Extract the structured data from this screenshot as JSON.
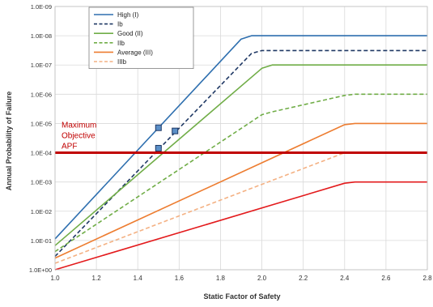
{
  "chart_data": {
    "type": "line",
    "title": "",
    "xlabel": "Static Factor of Safety",
    "ylabel": "Annual Probability of Failure",
    "xlim": [
      1.0,
      2.8
    ],
    "x_ticks": [
      "1.0",
      "1.2",
      "1.4",
      "1.6",
      "1.8",
      "2.0",
      "2.2",
      "2.4",
      "2.6",
      "2.8"
    ],
    "ylim_exponent": [
      0,
      -9
    ],
    "y_ticks": [
      "1.0E+00",
      "1.0E-01",
      "1.0E-02",
      "1.0E-03",
      "1.0E-04",
      "1.0E-05",
      "1.0E-06",
      "1.0E-07",
      "1.0E-08",
      "1.0E-09"
    ],
    "y_scale": "log, inverted (smaller probabilities toward top)",
    "grid": "horizontal and vertical",
    "legend_position": "top-left",
    "series": [
      {
        "name": "High (I)",
        "color": "#2e6faf",
        "dash": "solid",
        "x": [
          1.0,
          1.9,
          1.95,
          2.8
        ],
        "y": [
          0.088,
          1.3e-08,
          1e-08,
          1e-08
        ]
      },
      {
        "name": "Ib",
        "color": "#1f3864",
        "dash": "dashed",
        "x": [
          1.0,
          1.95,
          2.0,
          2.8
        ],
        "y": [
          0.35,
          4e-08,
          3.2e-08,
          3.2e-08
        ]
      },
      {
        "name": "Good (II)",
        "color": "#70ad47",
        "dash": "solid",
        "x": [
          1.0,
          2.0,
          2.05,
          2.8
        ],
        "y": [
          0.15,
          1.3e-07,
          1e-07,
          1e-07
        ]
      },
      {
        "name": "IIb",
        "color": "#70ad47",
        "dash": "dashed",
        "x": [
          1.0,
          2.0,
          2.05,
          2.4,
          2.45,
          2.8
        ],
        "y": [
          0.24,
          5e-06,
          4e-06,
          1.1e-06,
          1e-06,
          1e-06
        ]
      },
      {
        "name": "Average (III)",
        "color": "#ed7d31",
        "dash": "solid",
        "x": [
          1.0,
          2.4,
          2.45,
          2.8
        ],
        "y": [
          0.4,
          1.1e-05,
          1e-05,
          1e-05
        ]
      },
      {
        "name": "IIIb",
        "color": "#f4b183",
        "dash": "dashed",
        "x": [
          1.0,
          2.4,
          2.45,
          2.8
        ],
        "y": [
          0.6,
          0.0001,
          0.0001,
          0.0001
        ]
      },
      {
        "name": "",
        "color": "#e31a1c",
        "dash": "solid",
        "x": [
          1.0,
          2.4,
          2.45,
          2.8
        ],
        "y": [
          1.0,
          0.0011,
          0.001,
          0.001
        ]
      }
    ],
    "reference_line": {
      "y": 0.0001,
      "color": "#c00000",
      "label": [
        "Maximum",
        "Objective",
        "APF"
      ]
    },
    "points": [
      {
        "x": 1.5,
        "y": 1.4e-05
      },
      {
        "x": 1.58,
        "y": 1.8e-05
      },
      {
        "x": 1.5,
        "y": 7e-05
      }
    ]
  }
}
